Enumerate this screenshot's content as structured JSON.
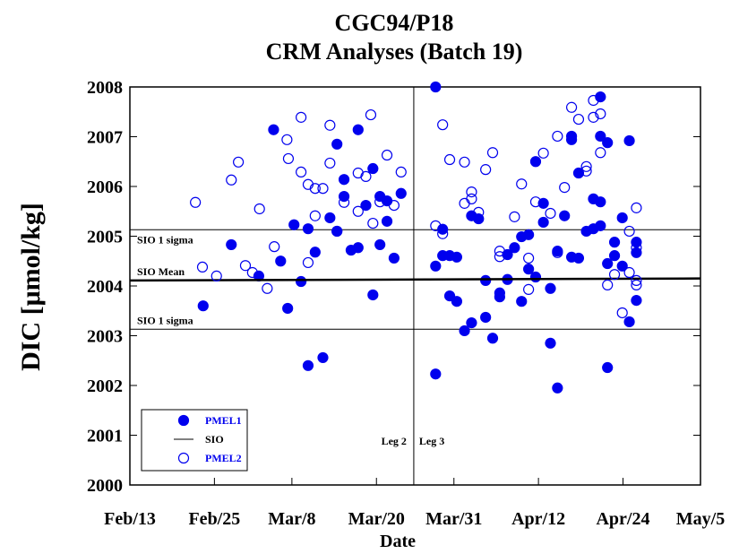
{
  "chart_data": {
    "type": "scatter",
    "title": "CGC94/P18",
    "subtitle": "CRM Analyses (Batch 19)",
    "x_label": "Date",
    "y_label": "DIC [μmol/kg]",
    "xlim": [
      44,
      125
    ],
    "xticks": [
      {
        "value": 44,
        "label": "Feb/13"
      },
      {
        "value": 56,
        "label": "Feb/25"
      },
      {
        "value": 67,
        "label": "Mar/8"
      },
      {
        "value": 79,
        "label": "Mar/20"
      },
      {
        "value": 90,
        "label": "Mar/31"
      },
      {
        "value": 102,
        "label": "Apr/12"
      },
      {
        "value": 114,
        "label": "Apr/24"
      },
      {
        "value": 125,
        "label": "May/5"
      }
    ],
    "ylim": [
      2000,
      2008
    ],
    "yticks": [
      2000,
      2001,
      2002,
      2003,
      2004,
      2005,
      2006,
      2007,
      2008
    ],
    "grid": false,
    "legend": "lower left",
    "reference_lines": [
      {
        "label": "SIO 1 sigma",
        "value": 2005.13
      },
      {
        "label": "SIO 1 sigma",
        "value": 2003.13
      }
    ],
    "divider": {
      "x": 84.3,
      "labels": [
        "Leg 2",
        "Leg 3"
      ]
    },
    "series": [
      {
        "name": "PMEL1",
        "color": "#0000ee",
        "marker": "filled",
        "x": [
          54.4,
          58.4,
          62.3,
          64.4,
          65.4,
          66.4,
          67.3,
          68.3,
          69.3,
          69.3,
          70.3,
          71.4,
          72.4,
          73.4,
          73.4,
          74.4,
          74.4,
          75.4,
          76.4,
          76.4,
          77.5,
          78.5,
          78.5,
          79.5,
          79.5,
          80.5,
          80.5,
          81.5,
          82.5,
          87.4,
          87.4,
          87.4,
          88.4,
          88.4,
          89.4,
          89.4,
          90.4,
          90.4,
          91.5,
          92.5,
          92.5,
          93.5,
          94.5,
          94.5,
          95.5,
          96.5,
          96.5,
          97.6,
          97.6,
          98.6,
          99.6,
          99.6,
          100.6,
          100.6,
          101.6,
          101.6,
          102.7,
          102.7,
          103.7,
          103.7,
          104.7,
          104.7,
          105.7,
          106.7,
          106.7,
          106.7,
          107.7,
          107.7,
          108.8,
          109.8,
          109.8,
          110.8,
          110.8,
          110.8,
          110.8,
          111.8,
          111.8,
          111.8,
          112.8,
          112.8,
          113.9,
          113.9,
          114.9,
          114.9,
          115.9,
          115.9,
          115.9
        ],
        "values": [
          2003.6,
          2004.83,
          2004.2,
          2007.14,
          2004.5,
          2003.55,
          2005.23,
          2004.09,
          2002.4,
          2005.15,
          2004.68,
          2002.56,
          2005.37,
          2006.85,
          2005.1,
          2006.14,
          2005.8,
          2004.72,
          2007.14,
          2004.77,
          2005.62,
          2006.36,
          2003.82,
          2005.8,
          2004.83,
          2005.71,
          2005.3,
          2004.56,
          2005.86,
          2008.0,
          2004.4,
          2002.23,
          2005.14,
          2004.61,
          2004.61,
          2003.8,
          2004.58,
          2003.69,
          2003.1,
          2005.41,
          2003.26,
          2005.35,
          2004.11,
          2003.37,
          2002.95,
          2003.86,
          2003.78,
          2004.63,
          2004.13,
          2004.77,
          2004.99,
          2003.69,
          2005.03,
          2004.34,
          2006.5,
          2004.18,
          2005.66,
          2005.28,
          2003.95,
          2002.85,
          2004.7,
          2001.95,
          2005.41,
          2007.01,
          2006.94,
          2004.58,
          2006.27,
          2004.56,
          2005.1,
          2005.75,
          2005.15,
          2005.21,
          2007.8,
          2005.69,
          2007.01,
          2006.88,
          2002.36,
          2004.45,
          2004.61,
          2004.88,
          2005.37,
          2004.4,
          2006.92,
          2003.28,
          2004.67,
          2004.88,
          2003.71
        ]
      },
      {
        "name": "SIO",
        "color": "#000000",
        "marker": "line",
        "label": "SIO Mean",
        "x": [
          44,
          125
        ],
        "values": [
          2004.11,
          2004.15
        ]
      },
      {
        "name": "PMEL2",
        "color": "#0000ee",
        "marker": "open",
        "x": [
          53.3,
          54.3,
          56.3,
          58.4,
          59.4,
          60.4,
          61.4,
          62.4,
          63.5,
          64.5,
          66.3,
          66.5,
          68.3,
          68.3,
          69.3,
          69.3,
          70.3,
          70.3,
          71.4,
          72.4,
          72.4,
          73.4,
          74.4,
          76.4,
          76.4,
          77.5,
          78.2,
          78.5,
          79.5,
          80.5,
          81.5,
          82.5,
          87.4,
          88.4,
          88.4,
          89.4,
          91.5,
          91.5,
          92.5,
          92.5,
          93.5,
          94.5,
          95.5,
          96.5,
          96.5,
          98.6,
          99.6,
          100.6,
          100.6,
          101.6,
          102.7,
          103.7,
          104.7,
          104.7,
          105.7,
          106.7,
          107.7,
          108.8,
          108.8,
          109.8,
          109.8,
          110.8,
          110.8,
          111.8,
          112.8,
          113.9,
          114.9,
          114.9,
          115.9,
          115.9,
          115.9,
          115.9
        ],
        "values": [
          2005.68,
          2004.38,
          2004.2,
          2006.13,
          2006.49,
          2004.41,
          2004.27,
          2005.55,
          2003.95,
          2004.79,
          2006.94,
          2006.56,
          2006.29,
          2007.39,
          2006.04,
          2004.47,
          2005.96,
          2005.41,
          2005.96,
          2007.23,
          2006.47,
          2005.1,
          2005.68,
          2006.27,
          2005.5,
          2006.2,
          2007.44,
          2005.26,
          2005.69,
          2006.63,
          2005.62,
          2006.29,
          2005.21,
          2005.05,
          2007.24,
          2006.54,
          2006.49,
          2005.66,
          2005.89,
          2005.75,
          2005.48,
          2006.34,
          2006.68,
          2004.7,
          2004.59,
          2005.39,
          2006.05,
          2004.56,
          2003.93,
          2005.69,
          2006.67,
          2005.46,
          2007.01,
          2004.67,
          2005.98,
          2007.59,
          2007.35,
          2006.4,
          2006.31,
          2007.39,
          2007.73,
          2007.46,
          2006.68,
          2004.02,
          2004.23,
          2003.46,
          2005.1,
          2004.27,
          2005.57,
          2004.77,
          2004.11,
          2004.02
        ]
      }
    ]
  }
}
